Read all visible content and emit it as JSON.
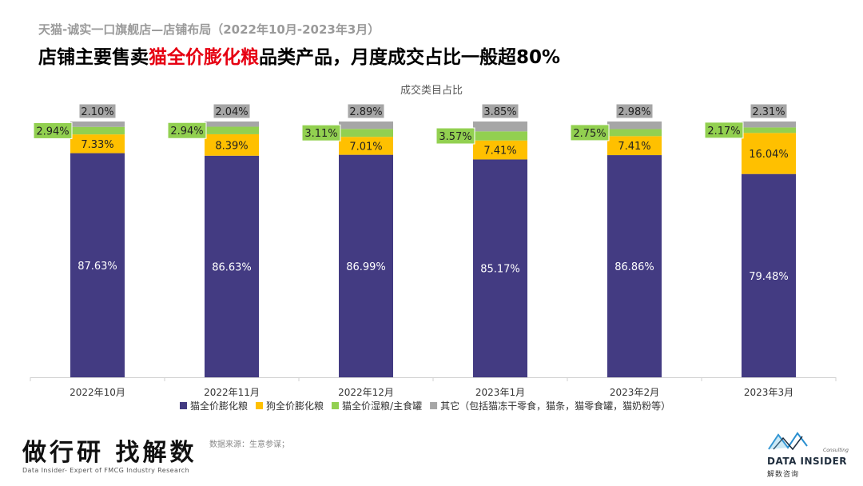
{
  "header": {
    "subtitle": "天猫-诚实一口旗舰店—店铺布局（2022年10月-2023年3月）",
    "headline_before": "店铺主要售卖",
    "headline_highlight": "猫全价膨化粮",
    "headline_after": "品类产品，月度成交占比一般超80%"
  },
  "colors": {
    "highlight": "#e60012",
    "cat_dry": "#433b82",
    "dog_dry": "#ffc000",
    "cat_wet": "#92d050",
    "other": "#a6a6a6"
  },
  "chart_data": {
    "type": "bar",
    "stacked": true,
    "title": "成交类目占比",
    "categories": [
      "2022年10月",
      "2022年11月",
      "2022年12月",
      "2023年1月",
      "2023年2月",
      "2023年3月"
    ],
    "series": [
      {
        "name": "猫全价膨化粮",
        "color": "#433b82",
        "values": [
          87.63,
          86.63,
          86.99,
          85.17,
          86.86,
          79.48
        ]
      },
      {
        "name": "狗全价膨化粮",
        "color": "#ffc000",
        "values": [
          7.33,
          8.39,
          7.01,
          7.41,
          7.41,
          16.04
        ]
      },
      {
        "name": "猫全价湿粮/主食罐",
        "color": "#92d050",
        "values": [
          2.94,
          2.94,
          3.11,
          3.57,
          2.75,
          2.17
        ]
      },
      {
        "name": "其它（包括猫冻干零食，猫条，猫零食罐，猫奶粉等）",
        "color": "#a6a6a6",
        "values": [
          2.1,
          2.04,
          2.89,
          3.85,
          2.98,
          2.31
        ]
      }
    ],
    "ylim": [
      0,
      100
    ],
    "value_unit": "%",
    "legend_position": "bottom",
    "grid": false
  },
  "footer": {
    "left_title": "做行研 找解数",
    "left_sub": "Data Insider- Expert of FMCG Industry Research",
    "source": "数据来源：生意参谋；",
    "brand_name": "DATA INSIDER",
    "brand_consulting": "Consulting",
    "brand_cn": "解数咨询"
  }
}
